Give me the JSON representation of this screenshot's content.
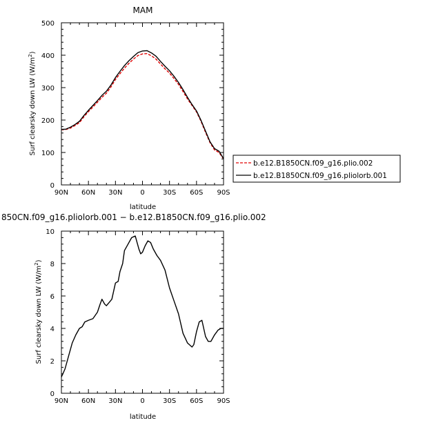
{
  "chart_data": [
    {
      "type": "line",
      "title": "MAM",
      "xlabel": "latitude",
      "ylabel": "Surf clearsky down LW (W/m²)",
      "xlim": [
        -90,
        90
      ],
      "ylim": [
        0,
        500
      ],
      "x_ticks": [
        {
          "value": -90,
          "label": "90N"
        },
        {
          "value": -60,
          "label": "60N"
        },
        {
          "value": -30,
          "label": "30N"
        },
        {
          "value": 0,
          "label": "0"
        },
        {
          "value": 30,
          "label": "30S"
        },
        {
          "value": 60,
          "label": "60S"
        },
        {
          "value": 90,
          "label": "90S"
        }
      ],
      "y_ticks": [
        0,
        100,
        200,
        300,
        400,
        500
      ],
      "grid": false,
      "legend": "right",
      "series": [
        {
          "name": "b.e12.B1850CN.f09_g16.plio.002",
          "color": "#e00000",
          "dash": "dashed",
          "x": [
            -90,
            -85,
            -80,
            -75,
            -70,
            -65,
            -60,
            -55,
            -50,
            -45,
            -40,
            -35,
            -30,
            -25,
            -20,
            -15,
            -10,
            -5,
            0,
            5,
            10,
            15,
            20,
            25,
            30,
            35,
            40,
            45,
            50,
            55,
            60,
            65,
            70,
            75,
            80,
            85,
            90
          ],
          "y": [
            170,
            171,
            175,
            183,
            192,
            210,
            226,
            240,
            255,
            270,
            283,
            302,
            325,
            343,
            360,
            375,
            388,
            399,
            404,
            405,
            398,
            388,
            373,
            358,
            345,
            328,
            310,
            288,
            265,
            245,
            225,
            196,
            162,
            130,
            108,
            100,
            80
          ]
        },
        {
          "name": "b.e12.B1850CN.f09_g16.pliolorb.001",
          "color": "#000000",
          "dash": "solid",
          "x": [
            -90,
            -85,
            -80,
            -75,
            -70,
            -65,
            -60,
            -55,
            -50,
            -45,
            -40,
            -35,
            -30,
            -25,
            -20,
            -15,
            -10,
            -5,
            0,
            5,
            10,
            15,
            20,
            25,
            30,
            35,
            40,
            45,
            50,
            55,
            60,
            65,
            70,
            75,
            80,
            85,
            90
          ],
          "y": [
            171,
            172,
            178,
            186,
            196,
            214,
            230,
            245,
            260,
            276,
            289,
            308,
            331,
            350,
            368,
            383,
            396,
            408,
            413,
            414,
            407,
            397,
            381,
            366,
            352,
            335,
            316,
            294,
            270,
            248,
            228,
            199,
            166,
            133,
            112,
            104,
            81
          ]
        }
      ]
    },
    {
      "type": "line",
      "title": "850CN.f09_g16.pliolorb.001 − b.e12.B1850CN.f09_g16.plio.002",
      "xlabel": "latitude",
      "ylabel": "Surf clearsky down LW (W/m²)",
      "xlim": [
        -90,
        90
      ],
      "ylim": [
        0,
        10
      ],
      "x_ticks": [
        {
          "value": -90,
          "label": "90N"
        },
        {
          "value": -60,
          "label": "60N"
        },
        {
          "value": -30,
          "label": "30N"
        },
        {
          "value": 0,
          "label": "0"
        },
        {
          "value": 30,
          "label": "30S"
        },
        {
          "value": 60,
          "label": "60S"
        },
        {
          "value": 90,
          "label": "90S"
        }
      ],
      "y_ticks": [
        0,
        2,
        4,
        6,
        8,
        10
      ],
      "grid": false,
      "series": [
        {
          "color": "#000000",
          "dash": "solid",
          "x": [
            -90,
            -86,
            -82,
            -78,
            -74,
            -70,
            -67,
            -64,
            -60,
            -55,
            -50,
            -47,
            -45,
            -42,
            -40,
            -37,
            -34,
            -30,
            -27,
            -25,
            -22,
            -20,
            -16,
            -12,
            -8,
            -4,
            -2,
            0,
            3,
            6,
            9,
            12,
            16,
            20,
            25,
            30,
            35,
            40,
            45,
            50,
            55,
            57,
            60,
            63,
            66,
            68,
            70,
            73,
            76,
            80,
            84,
            87,
            90
          ],
          "y": [
            1.0,
            1.5,
            2.3,
            3.1,
            3.6,
            4.0,
            4.1,
            4.4,
            4.5,
            4.6,
            5.0,
            5.5,
            5.8,
            5.5,
            5.4,
            5.6,
            5.8,
            6.8,
            6.9,
            7.5,
            8.0,
            8.8,
            9.2,
            9.6,
            9.7,
            8.9,
            8.6,
            8.7,
            9.1,
            9.4,
            9.3,
            8.9,
            8.5,
            8.2,
            7.6,
            6.5,
            5.7,
            4.9,
            3.7,
            3.1,
            2.85,
            3.0,
            3.8,
            4.4,
            4.5,
            4.0,
            3.5,
            3.2,
            3.2,
            3.6,
            3.9,
            4.0,
            4.0
          ]
        }
      ]
    }
  ]
}
